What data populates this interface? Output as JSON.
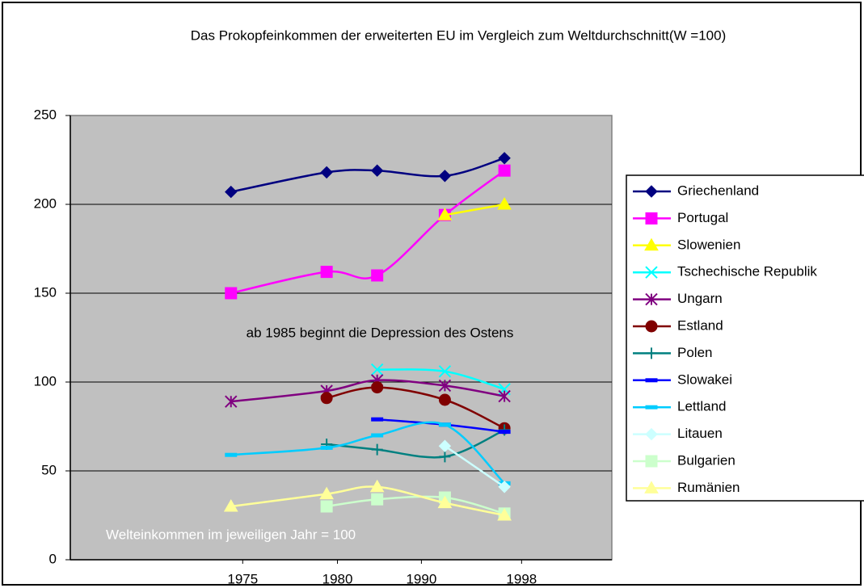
{
  "chart_data": {
    "type": "line",
    "title": "Das Prokopfeinkommen der erweiterten EU im Vergleich zum Weltdurchschnitt(W =100)",
    "annotations": [
      "ab 1985 beginnt die Depression des Ostens",
      "Welteinkommen im jeweiligen Jahr = 100"
    ],
    "x": [
      1.78,
      2.84,
      3.4,
      4.15,
      4.81
    ],
    "xlim": [
      0,
      6
    ],
    "xticks": [
      {
        "value": 1.91,
        "label": "1975"
      },
      {
        "value": 2.96,
        "label": "1980"
      },
      {
        "value": 3.89,
        "label": "1990"
      },
      {
        "value": 5.0,
        "label": "1998"
      }
    ],
    "ylim": [
      0,
      250
    ],
    "yticks": [
      0,
      50,
      100,
      150,
      200,
      250
    ],
    "grid": true,
    "smooth": true,
    "legend": "right",
    "series": [
      {
        "name": "Griechenland",
        "color": "#000080",
        "marker": "diamond",
        "values": [
          207,
          218,
          219,
          216,
          226
        ]
      },
      {
        "name": "Portugal",
        "color": "#ff00ff",
        "marker": "square",
        "values": [
          150,
          162,
          160,
          194,
          219
        ]
      },
      {
        "name": "Slowenien",
        "color": "#ffff00",
        "marker": "triangle",
        "values": [
          null,
          null,
          null,
          194,
          200
        ]
      },
      {
        "name": "Tschechische Republik",
        "color": "#00ffff",
        "marker": "x",
        "values": [
          null,
          null,
          107,
          106,
          96
        ]
      },
      {
        "name": "Ungarn",
        "color": "#800080",
        "marker": "star",
        "values": [
          89,
          95,
          101,
          98,
          92
        ]
      },
      {
        "name": "Estland",
        "color": "#800000",
        "marker": "circle",
        "values": [
          null,
          91,
          97,
          90,
          74
        ]
      },
      {
        "name": "Polen",
        "color": "#008080",
        "marker": "plus",
        "values": [
          null,
          65,
          62,
          58,
          73
        ]
      },
      {
        "name": "Slowakei",
        "color": "#0000ff",
        "marker": "dash",
        "values": [
          null,
          null,
          79,
          76,
          72
        ]
      },
      {
        "name": "Lettland",
        "color": "#00ccff",
        "marker": "dash",
        "values": [
          59,
          63,
          70,
          76,
          43
        ]
      },
      {
        "name": "Litauen",
        "color": "#ccffff",
        "marker": "diamond",
        "values": [
          null,
          null,
          null,
          64,
          41
        ]
      },
      {
        "name": "Bulgarien",
        "color": "#ccffcc",
        "marker": "square",
        "values": [
          null,
          30,
          34,
          35,
          26
        ]
      },
      {
        "name": "Rumänien",
        "color": "#ffff99",
        "marker": "triangle",
        "values": [
          30,
          37,
          41,
          32,
          25
        ]
      }
    ]
  }
}
